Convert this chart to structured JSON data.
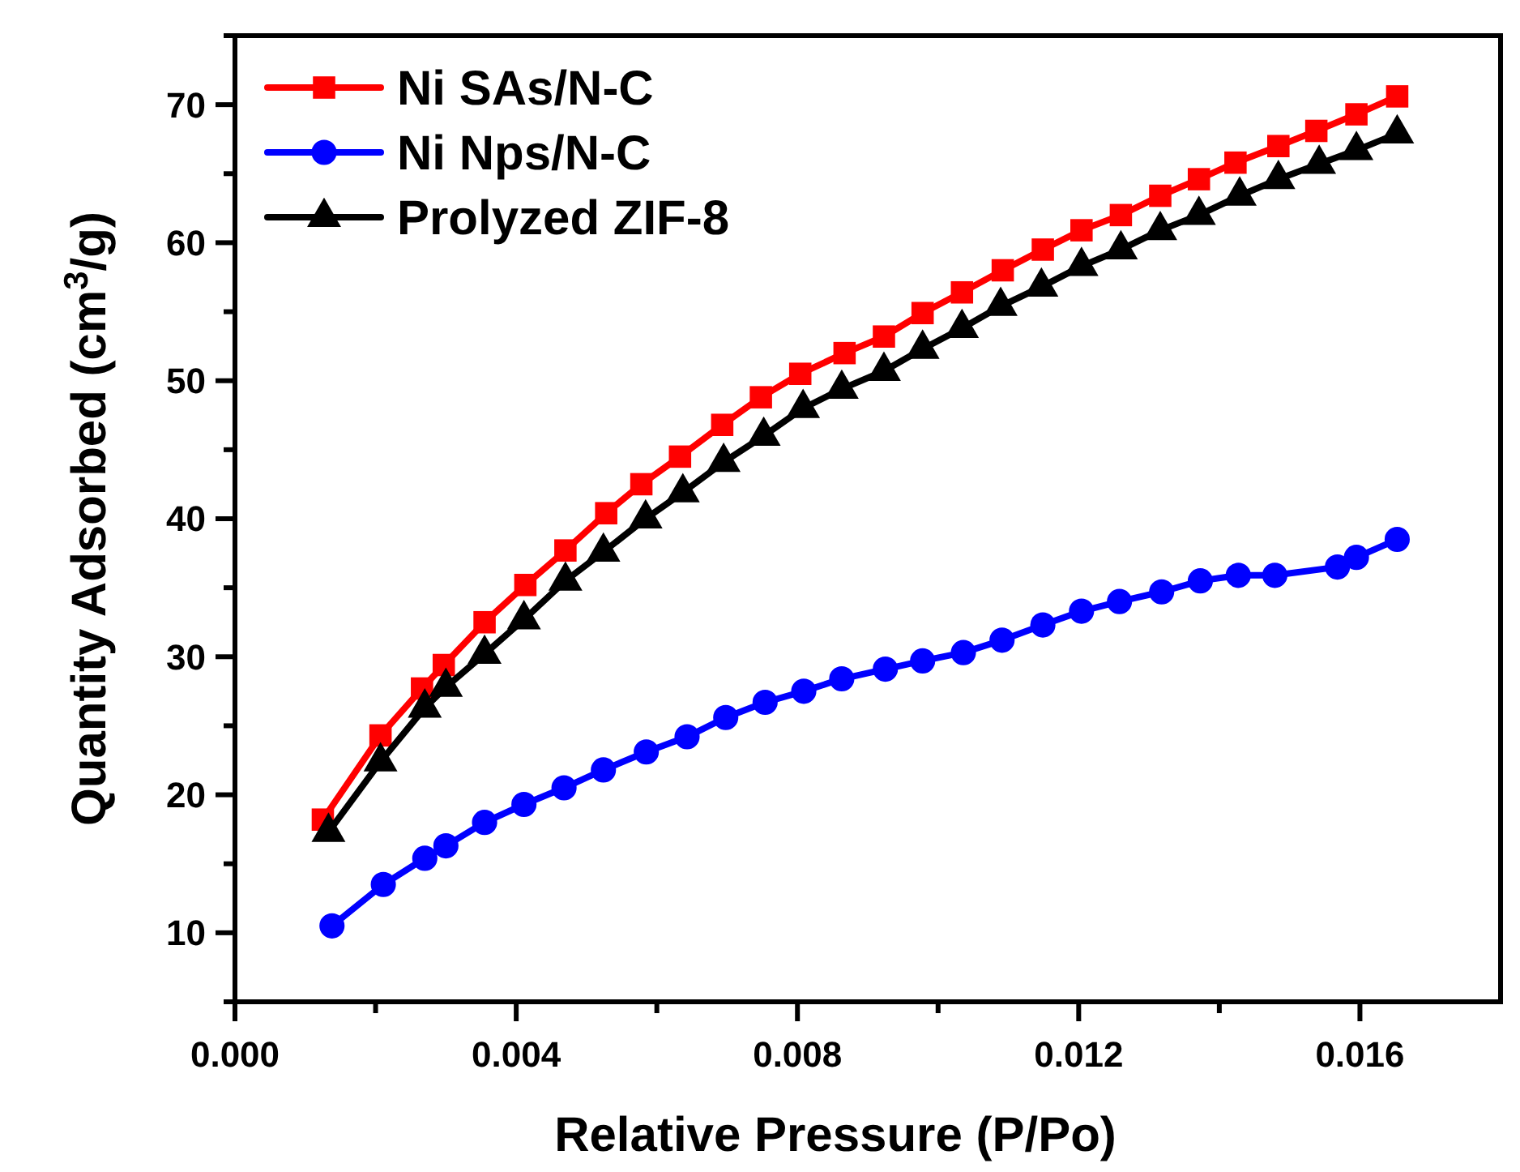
{
  "chart_data": {
    "type": "line",
    "xlabel": "Relative Pressure (P/Po)",
    "ylabel": "Quantity Adsorbed (cm$^{3}$/g)",
    "xlim": [
      0,
      0.018
    ],
    "ylim": [
      5,
      75
    ],
    "xticks": [
      {
        "value": 0,
        "label": "0.000"
      },
      {
        "value": 0.002,
        "label": null
      },
      {
        "value": 0.004,
        "label": "0.004"
      },
      {
        "value": 0.006,
        "label": null
      },
      {
        "value": 0.008,
        "label": "0.008"
      },
      {
        "value": 0.01,
        "label": null
      },
      {
        "value": 0.012,
        "label": "0.012"
      },
      {
        "value": 0.014,
        "label": null
      },
      {
        "value": 0.016,
        "label": "0.016"
      }
    ],
    "yticks": [
      {
        "value": 5,
        "label": null
      },
      10,
      {
        "value": 15,
        "label": null
      },
      20,
      {
        "value": 25,
        "label": null
      },
      30,
      {
        "value": 35,
        "label": null
      },
      40,
      {
        "value": 45,
        "label": null
      },
      50,
      {
        "value": 55,
        "label": null
      },
      60,
      {
        "value": 65,
        "label": null
      },
      70,
      {
        "value": 75,
        "label": null
      }
    ],
    "grid": false,
    "legend": "top left",
    "line_style": "solid",
    "series": [
      {
        "name": "Ni SAs/N-C",
        "color": "#ff0000",
        "marker": "square",
        "x": [
          0.00125,
          0.00207,
          0.00266,
          0.00297,
          0.00355,
          0.00413,
          0.0047,
          0.00528,
          0.00578,
          0.00633,
          0.00693,
          0.00748,
          0.00804,
          0.00867,
          0.00923,
          0.00978,
          0.01034,
          0.01092,
          0.01149,
          0.01204,
          0.0126,
          0.01316,
          0.01371,
          0.01423,
          0.01484,
          0.01538,
          0.01595,
          0.01653
        ],
        "values": [
          18.2,
          24.3,
          27.7,
          29.4,
          32.5,
          35.2,
          37.7,
          40.4,
          42.5,
          44.5,
          46.8,
          48.8,
          50.5,
          52.0,
          53.2,
          54.9,
          56.4,
          58.0,
          59.5,
          60.9,
          62.0,
          63.4,
          64.6,
          65.8,
          67.0,
          68.1,
          69.3,
          70.6
        ]
      },
      {
        "name": "Ni Nps/N-C",
        "color": "#0000ff",
        "marker": "circle",
        "x": [
          0.00138,
          0.00211,
          0.0027,
          0.003,
          0.00355,
          0.00411,
          0.00468,
          0.00524,
          0.00585,
          0.00643,
          0.00698,
          0.00754,
          0.00809,
          0.00863,
          0.00925,
          0.00978,
          0.01036,
          0.01091,
          0.01149,
          0.01204,
          0.01258,
          0.01318,
          0.01373,
          0.01427,
          0.01479,
          0.01568,
          0.01595,
          0.01653
        ],
        "values": [
          10.5,
          13.5,
          15.4,
          16.3,
          18.0,
          19.3,
          20.5,
          21.8,
          23.1,
          24.2,
          25.6,
          26.7,
          27.5,
          28.4,
          29.1,
          29.7,
          30.3,
          31.2,
          32.3,
          33.3,
          34.0,
          34.7,
          35.5,
          35.9,
          35.9,
          36.5,
          37.2,
          38.5
        ]
      },
      {
        "name": "Prolyzed ZIF-8",
        "color": "#000000",
        "marker": "triangle",
        "x": [
          0.00133,
          0.00207,
          0.0027,
          0.003,
          0.00355,
          0.00411,
          0.0047,
          0.00524,
          0.00584,
          0.00637,
          0.00695,
          0.00752,
          0.00808,
          0.00863,
          0.00923,
          0.00978,
          0.01034,
          0.01089,
          0.01147,
          0.01204,
          0.0126,
          0.01316,
          0.01371,
          0.01429,
          0.01484,
          0.01542,
          0.01595,
          0.01653
        ],
        "values": [
          17.3,
          22.4,
          26.3,
          27.8,
          30.2,
          32.7,
          35.5,
          37.6,
          40.0,
          41.9,
          44.1,
          46.0,
          48.0,
          49.4,
          50.7,
          52.3,
          53.8,
          55.4,
          56.8,
          58.3,
          59.5,
          60.9,
          62.0,
          63.4,
          64.6,
          65.7,
          66.7,
          67.9
        ]
      }
    ]
  }
}
